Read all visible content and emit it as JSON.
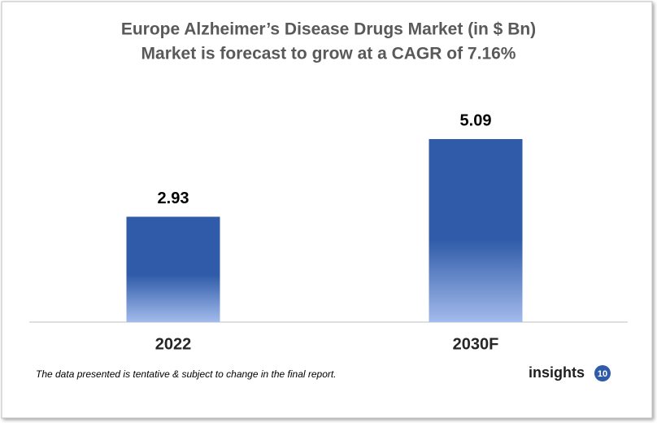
{
  "chart_data": {
    "type": "bar",
    "title": "Europe Alzheimer’s Disease Drugs Market (in $ Bn)",
    "subtitle": "Market is forecast to grow at a CAGR of 7.16%",
    "categories": [
      "2022",
      "2030F"
    ],
    "values": [
      2.93,
      5.09
    ],
    "color": "#2f5ba8",
    "footnote": "The data presented is tentative & subject to change in the final report.",
    "logo": {
      "text": "insights",
      "badge": "10"
    }
  }
}
